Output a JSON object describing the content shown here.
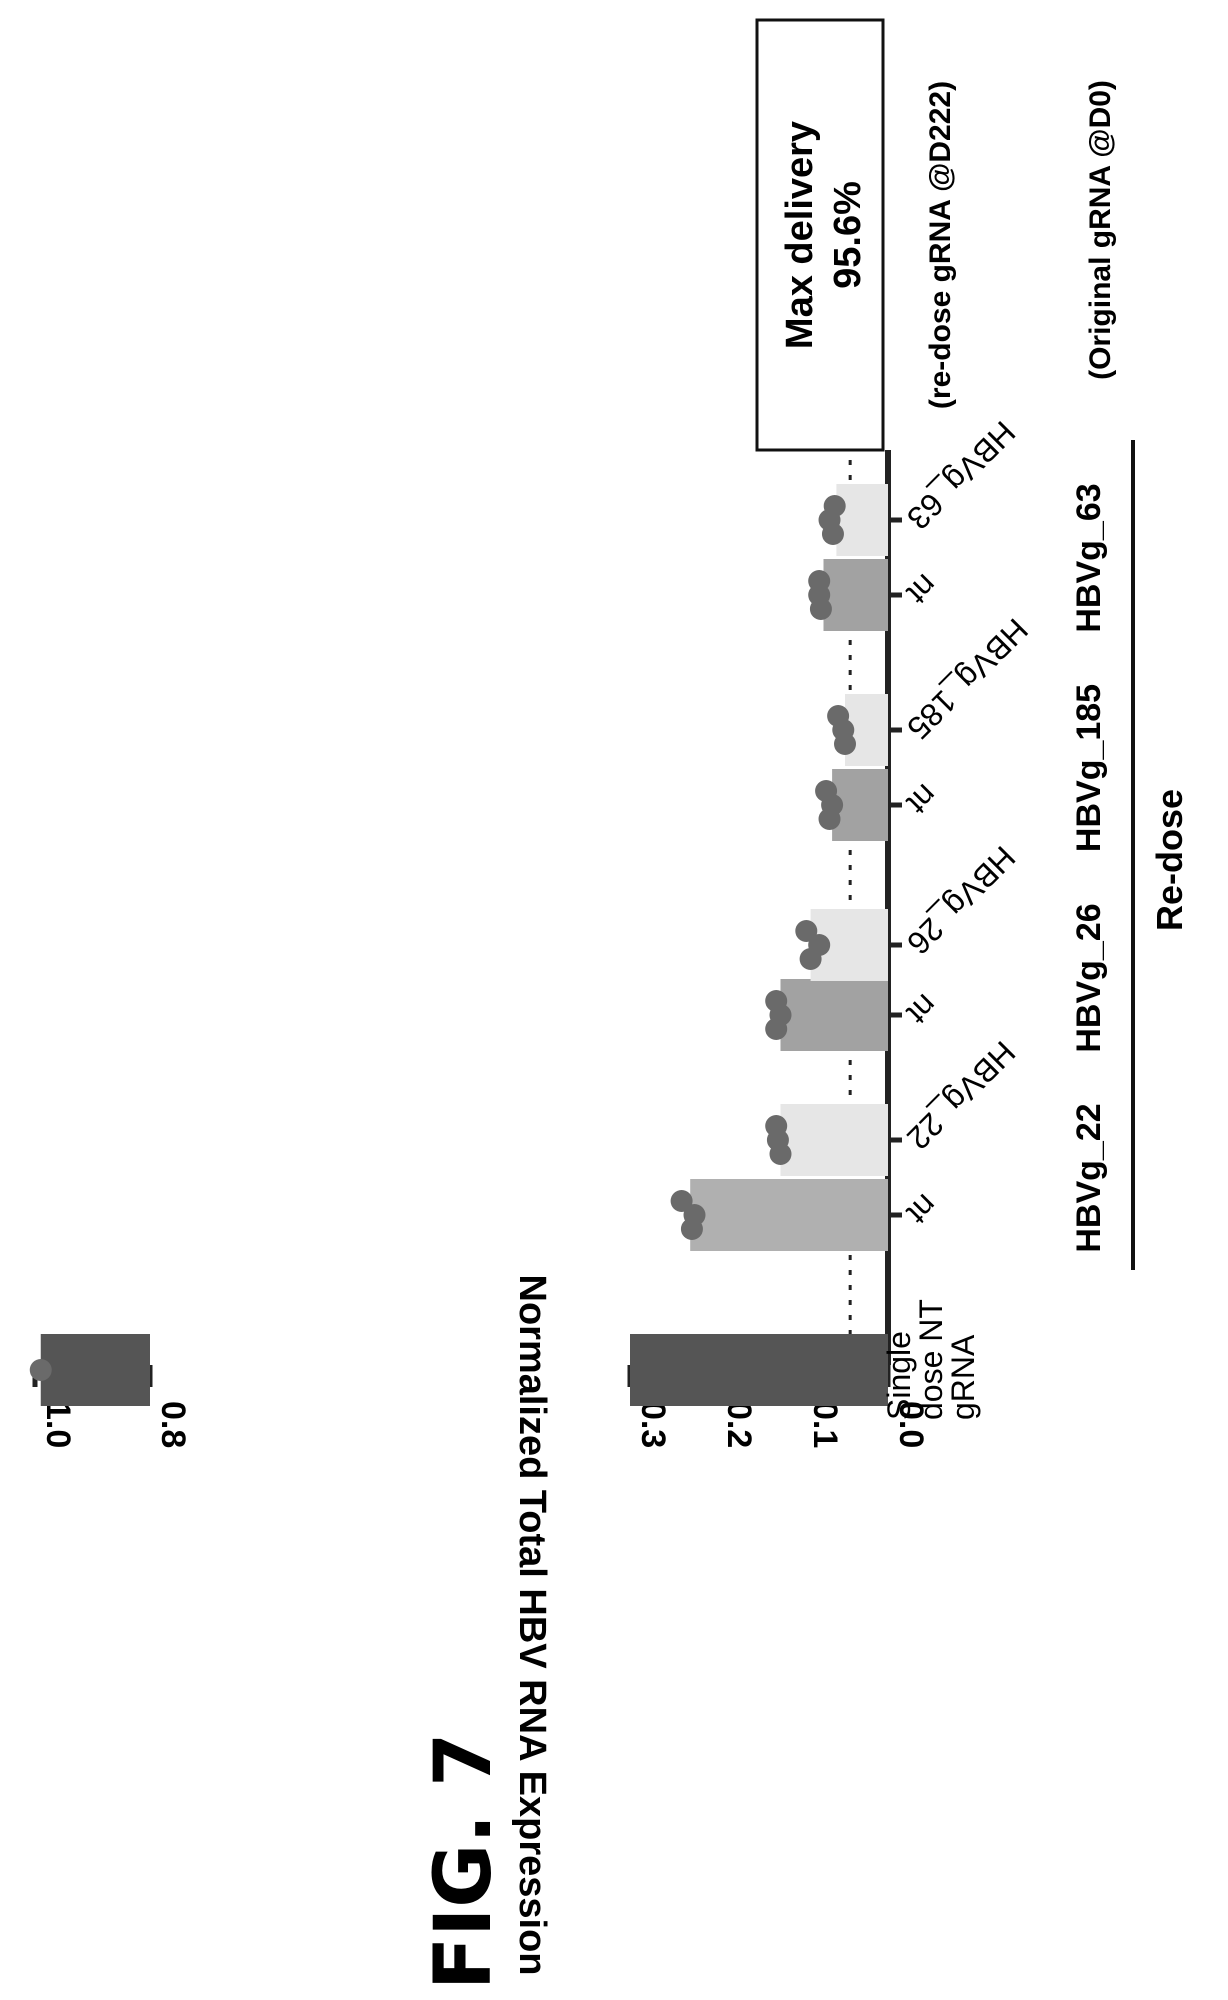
{
  "figure_label": "FIG. 7",
  "chart_data": {
    "type": "bar",
    "ylabel": "Normalized Total HBV RNA Expression",
    "y_ticks_lower": [
      "0.0",
      "0.1",
      "0.2",
      "0.3"
    ],
    "y_ticks_upper": [
      "0.8",
      "1.0"
    ],
    "ylim_lower": [
      0,
      0.3
    ],
    "ylim_upper": [
      0.8,
      1.0
    ],
    "reference_line": 0.044,
    "categories": [
      {
        "label": "Single dose NT gRNA",
        "lines": [
          "Single",
          "dose NT",
          "gRNA"
        ],
        "value": 0.99,
        "color": "#555555",
        "points": [
          0.99
        ]
      },
      {
        "label": "nt",
        "value": 0.23,
        "color": "#b0b0b0",
        "points": [
          0.24,
          0.225,
          0.228
        ]
      },
      {
        "label": "HBVg_22",
        "value": 0.125,
        "color": "#e6e6e6",
        "points": [
          0.13,
          0.128,
          0.125
        ]
      },
      {
        "label": "nt",
        "value": 0.125,
        "color": "#a2a2a2",
        "points": [
          0.13,
          0.125,
          0.13
        ]
      },
      {
        "label": "HBVg_26",
        "value": 0.09,
        "color": "#e6e6e6",
        "points": [
          0.095,
          0.08,
          0.09
        ]
      },
      {
        "label": "nt",
        "value": 0.065,
        "color": "#a2a2a2",
        "points": [
          0.072,
          0.065,
          0.068
        ]
      },
      {
        "label": "HBVg_185",
        "value": 0.05,
        "color": "#e6e6e6",
        "points": [
          0.058,
          0.052,
          0.05
        ]
      },
      {
        "label": "nt",
        "value": 0.075,
        "color": "#a2a2a2",
        "points": [
          0.08,
          0.08,
          0.078
        ]
      },
      {
        "label": "HBVg_63",
        "value": 0.06,
        "color": "#e6e6e6",
        "points": [
          0.062,
          0.068,
          0.064
        ]
      }
    ],
    "tick_labels": [
      "nt",
      "HBVg_22",
      "nt",
      "HBVg_26",
      "nt",
      "HBVg_185",
      "nt",
      "HBVg_63"
    ],
    "group_labels": [
      "HBVg_22",
      "HBVg_26",
      "HBVg_185",
      "HBVg_63"
    ],
    "redose_label": "Re-dose",
    "annotation": {
      "line1": "Max delivery",
      "line2": "95.6%"
    },
    "legend_redose": "(re-dose gRNA @D222)",
    "legend_original": "(Original gRNA @D0)"
  }
}
